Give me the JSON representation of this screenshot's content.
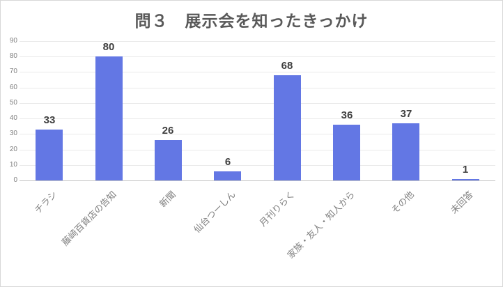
{
  "title": "問３　展示会を知ったきっかけ",
  "colors": {
    "bar": "#6377e4",
    "title_text": "#595959",
    "value_label": "#3f3f3f",
    "y_tick_label": "#7f7f7f",
    "x_tick_label": "#808080",
    "gridline": "#e9e9e9",
    "baseline": "#c6c6c6",
    "frame_border": "#d8d8d8"
  },
  "chart_data": {
    "type": "bar",
    "title": "問３　展示会を知ったきっかけ",
    "categories": [
      "チラシ",
      "藤崎百貨店の告知",
      "新聞",
      "仙台つーしん",
      "月刊りらく",
      "家族・友人・知人から",
      "その他",
      "未回答"
    ],
    "values": [
      33,
      80,
      26,
      6,
      68,
      36,
      37,
      1
    ],
    "value_labels": [
      "33",
      "80",
      "26",
      "6",
      "68",
      "36",
      "37",
      "1"
    ],
    "xlabel": "",
    "ylabel": "",
    "ylim": [
      0,
      90
    ],
    "yticks": [
      0,
      10,
      20,
      30,
      40,
      50,
      60,
      70,
      80,
      90
    ],
    "grid": true,
    "legend": false,
    "x_label_rotation_deg": 45
  }
}
